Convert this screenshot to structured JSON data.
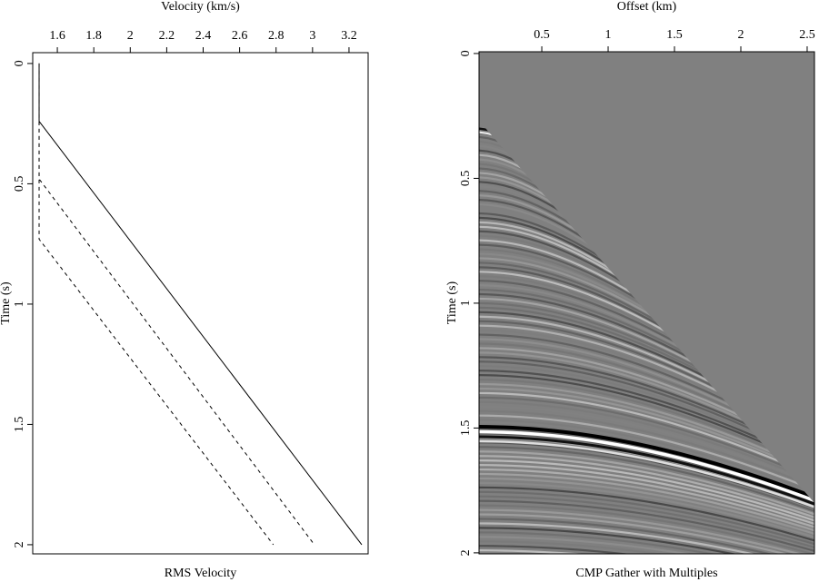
{
  "chart_data": [
    {
      "type": "line",
      "title": "RMS Velocity",
      "xlabel": "Velocity (km/s)",
      "ylabel": "Time (s)",
      "xlim": [
        1.465,
        3.305
      ],
      "ylim": [
        -0.045,
        2.038
      ],
      "y_inverted": true,
      "xticks": [
        1.6,
        1.8,
        2,
        2.2,
        2.4,
        2.6,
        2.8,
        3,
        3.2
      ],
      "yticks": [
        0,
        0.5,
        1,
        1.5,
        2
      ],
      "series": [
        {
          "color": "#000000",
          "dash": false,
          "x": [
            1.5,
            1.5,
            3.27
          ],
          "values": [
            0,
            0.24,
            2.0
          ]
        },
        {
          "color": "#000000",
          "dash": true,
          "x": [
            1.5,
            1.5,
            3.01
          ],
          "values": [
            0,
            0.48,
            2.0
          ]
        },
        {
          "color": "#000000",
          "dash": true,
          "x": [
            1.5,
            1.5,
            2.785
          ],
          "values": [
            0,
            0.73,
            2.0
          ]
        }
      ]
    },
    {
      "type": "image",
      "title": "CMP Gather with Multiples",
      "xlabel": "Offset (km)",
      "ylabel": "Time (s)",
      "xlim": [
        0.027,
        2.555
      ],
      "ylim": [
        -0.007,
        2.004
      ],
      "y_inverted": true,
      "xticks": [
        0.5,
        1,
        1.5,
        2,
        2.5
      ],
      "yticks": [
        0,
        0.5,
        1,
        1.5,
        2
      ]
    }
  ]
}
